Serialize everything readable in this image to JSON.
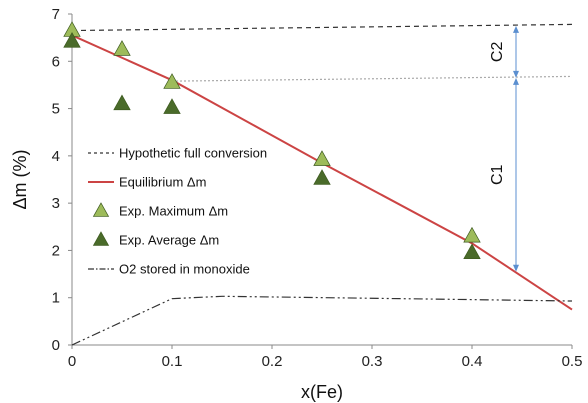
{
  "chart_data": {
    "type": "line",
    "xlabel": "x(Fe)",
    "ylabel": "Δm (%)",
    "xlim": [
      0,
      0.5
    ],
    "ylim": [
      0,
      7
    ],
    "x_ticks": [
      "0",
      "0.1",
      "0.2",
      "0.3",
      "0.4",
      "0.5"
    ],
    "y_ticks": [
      "0",
      "1",
      "2",
      "3",
      "4",
      "5",
      "6",
      "7"
    ],
    "grid": false,
    "legend_placement": "center-left",
    "series": [
      {
        "name": "Hypothetic full conversion",
        "style": "dashed",
        "color": "#333333",
        "x": [
          0,
          0.5
        ],
        "y": [
          6.65,
          6.78
        ]
      },
      {
        "name": "Equilibrium Δm",
        "style": "solid",
        "color": "#cc4444",
        "x": [
          0,
          0.1,
          0.25,
          0.4,
          0.5
        ],
        "y": [
          6.55,
          5.6,
          3.85,
          2.15,
          0.75
        ]
      },
      {
        "name": "Exp. Maximum Δm",
        "style": "marker",
        "color": "#9dbb5a",
        "x": [
          0,
          0.05,
          0.1,
          0.25,
          0.4
        ],
        "y": [
          6.65,
          6.25,
          5.55,
          3.92,
          2.3
        ]
      },
      {
        "name": "Exp. Average Δm",
        "style": "marker",
        "color": "#4a6b2a",
        "x": [
          0,
          0.05,
          0.1,
          0.25,
          0.4
        ],
        "y": [
          6.42,
          5.1,
          5.02,
          3.52,
          1.95
        ]
      },
      {
        "name": "O2 stored in monoxide",
        "style": "dashdot",
        "color": "#333333",
        "x": [
          0,
          0.1,
          0.15,
          0.4,
          0.5
        ],
        "y": [
          0,
          0.98,
          1.03,
          0.96,
          0.93
        ]
      }
    ],
    "reference_line": {
      "style": "dotted",
      "color": "#aaaaaa",
      "x": [
        0.1,
        0.5
      ],
      "y": [
        5.58,
        5.68
      ]
    },
    "annotations": [
      {
        "text": "C2",
        "x": 0.444,
        "y_from": 5.65,
        "y_to": 6.75
      },
      {
        "text": "C1",
        "x": 0.444,
        "y_from": 1.55,
        "y_to": 5.65
      }
    ],
    "annotation_color": "#5b8fd0"
  }
}
